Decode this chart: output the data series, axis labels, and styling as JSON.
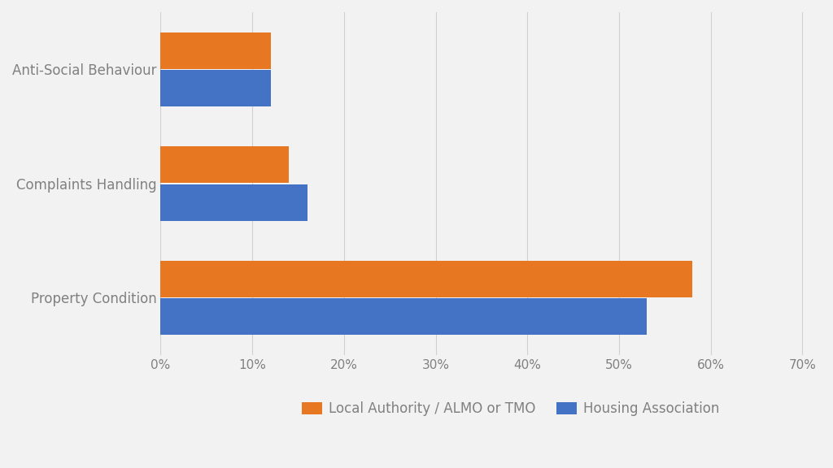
{
  "categories": [
    "Anti-Social Behaviour",
    "Complaints Handling",
    "Property Condition"
  ],
  "local_authority": [
    0.12,
    0.14,
    0.58
  ],
  "housing_association": [
    0.12,
    0.16,
    0.53
  ],
  "local_authority_color": "#E87722",
  "housing_association_color": "#4472C4",
  "background_color": "#F2F2F2",
  "legend_labels": [
    "Local Authority / ALMO or TMO",
    "Housing Association"
  ],
  "xlim": [
    0,
    0.72
  ],
  "xticks": [
    0.0,
    0.1,
    0.2,
    0.3,
    0.4,
    0.5,
    0.6,
    0.7
  ],
  "bar_height": 0.32,
  "bar_gap": 0.01,
  "grid_color": "#D0D0D0",
  "label_color": "#808080",
  "label_fontsize": 12,
  "tick_fontsize": 11
}
